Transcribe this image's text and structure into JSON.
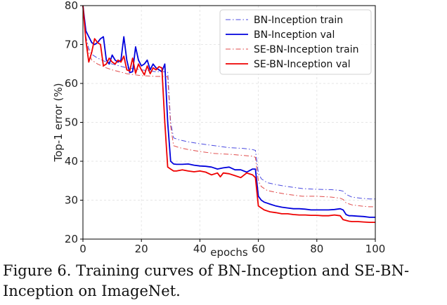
{
  "chart_data": {
    "type": "line",
    "title": "",
    "xlabel": "epochs",
    "ylabel": "Top-1 error (%)",
    "xlim": [
      0,
      100
    ],
    "ylim": [
      20,
      80
    ],
    "xticks": [
      0,
      20,
      40,
      60,
      80,
      100
    ],
    "yticks": [
      20,
      30,
      40,
      50,
      60,
      70,
      80
    ],
    "grid": true,
    "legend_position": "top-right",
    "series": [
      {
        "name": "BN-Inception train",
        "color": "#4a4ae0",
        "style": "dashdot",
        "x": [
          0,
          1,
          2,
          3,
          5,
          8,
          10,
          15,
          20,
          25,
          28,
          29,
          30,
          31,
          33,
          36,
          40,
          45,
          50,
          55,
          58,
          59,
          60,
          61,
          63,
          66,
          70,
          75,
          80,
          85,
          88,
          89,
          90,
          92,
          95,
          98,
          100
        ],
        "y": [
          80,
          72,
          69,
          67.5,
          66.5,
          65.5,
          65,
          64,
          63.5,
          63,
          63,
          63,
          50,
          46,
          45.5,
          45,
          44.5,
          44,
          43.5,
          43.3,
          43,
          42.8,
          37,
          35.5,
          34.5,
          34,
          33.5,
          33,
          32.8,
          32.7,
          32.5,
          32.3,
          31.5,
          30.8,
          30.5,
          30.3,
          30.3
        ]
      },
      {
        "name": "BN-Inception val",
        "color": "#0000dd",
        "style": "solid",
        "x": [
          0,
          1,
          2,
          3,
          4,
          5,
          6,
          7,
          8,
          9,
          10,
          11,
          12,
          13,
          14,
          15,
          16,
          17,
          18,
          19,
          20,
          21,
          22,
          23,
          24,
          25,
          26,
          27,
          28,
          29,
          30,
          31,
          32,
          34,
          36,
          38,
          40,
          42,
          44,
          46,
          48,
          50,
          52,
          54,
          56,
          58,
          59,
          60,
          61,
          62,
          64,
          66,
          68,
          70,
          72,
          74,
          76,
          78,
          80,
          82,
          84,
          86,
          88,
          89,
          90,
          91,
          92,
          94,
          96,
          98,
          100
        ],
        "y": [
          80,
          73.5,
          72,
          70.5,
          70,
          70.5,
          71.5,
          72,
          66,
          65,
          67.3,
          66,
          65.5,
          66,
          72,
          66,
          62.8,
          63,
          69.4,
          66,
          64.5,
          65,
          66,
          63.5,
          65,
          64,
          63.5,
          63,
          65,
          50,
          40,
          39.3,
          39.2,
          39.2,
          39.3,
          39,
          38.8,
          38.7,
          38.5,
          38,
          38.3,
          38.5,
          37.8,
          37.8,
          37.2,
          38,
          38,
          31,
          30,
          29.5,
          29,
          28.5,
          28.2,
          28,
          27.8,
          27.8,
          27.7,
          27.5,
          27.5,
          27.5,
          27.5,
          27.6,
          27.8,
          27.5,
          26.3,
          26,
          26,
          25.9,
          25.8,
          25.6,
          25.6
        ]
      },
      {
        "name": "SE-BN-Inception train",
        "color": "#e04a4a",
        "style": "dashdot",
        "x": [
          0,
          1,
          2,
          3,
          5,
          8,
          10,
          15,
          20,
          25,
          28,
          29,
          30,
          31,
          33,
          36,
          40,
          45,
          50,
          55,
          58,
          59,
          60,
          61,
          63,
          66,
          70,
          75,
          80,
          85,
          88,
          89,
          90,
          92,
          95,
          98,
          100
        ],
        "y": [
          80,
          71,
          68,
          66,
          65,
          64,
          63.5,
          62.5,
          62,
          61.8,
          61.8,
          61.7,
          49,
          44,
          43.5,
          43,
          42.5,
          42,
          41.8,
          41.5,
          41.3,
          41,
          35,
          33.5,
          32.5,
          32,
          31.5,
          31,
          31,
          30.8,
          30.5,
          30.2,
          29.3,
          28.8,
          28.5,
          28.3,
          28.3
        ]
      },
      {
        "name": "SE-BN-Inception val",
        "color": "#ee0000",
        "style": "solid",
        "x": [
          0,
          1,
          2,
          3,
          4,
          5,
          6,
          7,
          8,
          9,
          10,
          11,
          12,
          13,
          14,
          15,
          16,
          17,
          18,
          19,
          20,
          21,
          22,
          23,
          24,
          25,
          26,
          27,
          28,
          29,
          30,
          31,
          32,
          34,
          36,
          38,
          40,
          42,
          44,
          46,
          47,
          48,
          50,
          52,
          54,
          56,
          58,
          59,
          60,
          61,
          62,
          64,
          66,
          68,
          70,
          72,
          74,
          76,
          78,
          80,
          82,
          84,
          86,
          88,
          89,
          90,
          91,
          92,
          94,
          96,
          98,
          100
        ],
        "y": [
          80,
          71,
          65.5,
          68,
          71.5,
          70.5,
          70,
          64.5,
          65,
          66.5,
          65.5,
          65,
          66,
          65.5,
          67,
          63.5,
          63.2,
          66.5,
          62.6,
          65,
          63.5,
          62.2,
          64.5,
          62.5,
          64,
          63.5,
          64.3,
          64,
          50,
          38.5,
          38,
          37.5,
          37.5,
          37.8,
          37.5,
          37.3,
          37.5,
          37.2,
          36.5,
          37,
          36,
          37,
          36.8,
          36.3,
          35.8,
          37,
          36.5,
          35.8,
          28.5,
          28,
          27.5,
          27,
          26.8,
          26.5,
          26.5,
          26.3,
          26.2,
          26.2,
          26.1,
          26.1,
          26,
          26,
          26.2,
          26,
          25,
          24.8,
          24.6,
          24.5,
          24.5,
          24.4,
          24.3,
          24.3
        ]
      }
    ]
  },
  "caption": "Figure 6. Training curves of BN-Inception and SE-BN-Inception on ImageNet."
}
